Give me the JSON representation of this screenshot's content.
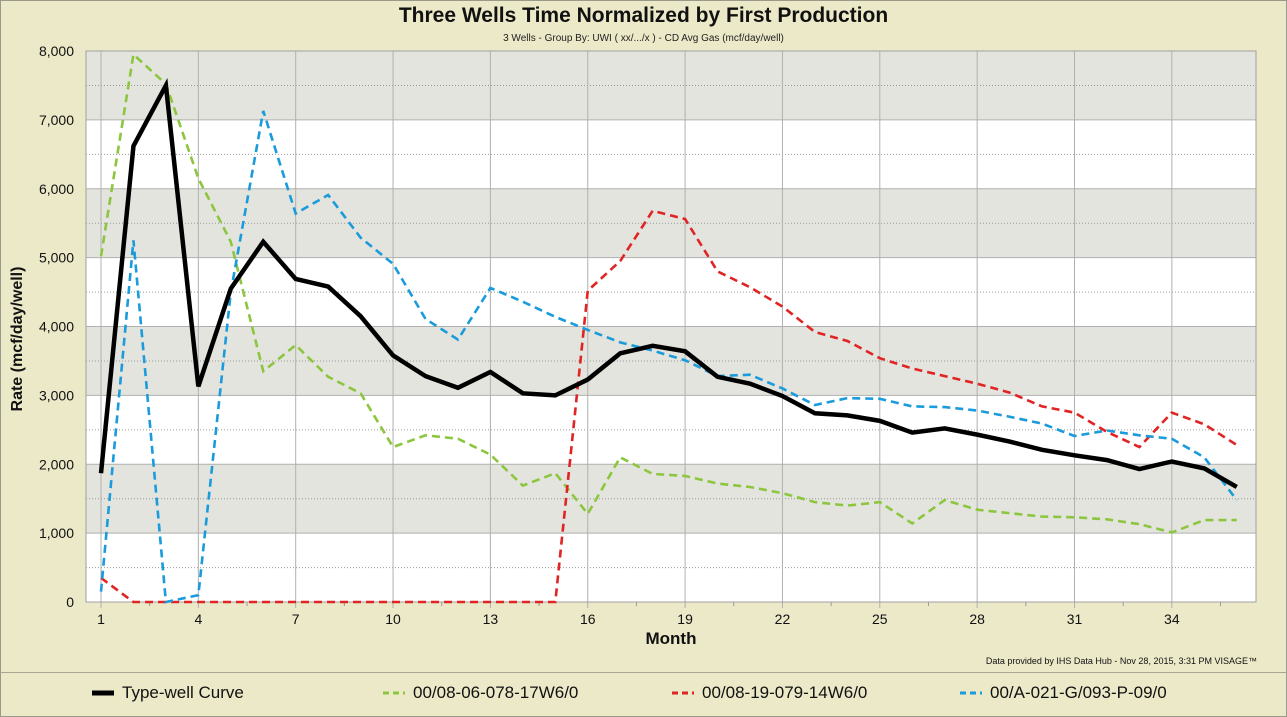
{
  "chart_data": {
    "type": "line",
    "title": "Three Wells Time Normalized by First Production",
    "subtitle": "3 Wells - Group By: UWI ( xx/.../x ) - CD Avg Gas (mcf/day/well)",
    "xlabel": "Month",
    "ylabel": "Rate (mcf/day/well)",
    "xlim": [
      1,
      36
    ],
    "ylim": [
      0,
      8000
    ],
    "x_ticks": [
      1,
      4,
      7,
      10,
      13,
      16,
      19,
      22,
      25,
      28,
      31,
      34
    ],
    "y_ticks": [
      0,
      1000,
      2000,
      3000,
      4000,
      5000,
      6000,
      7000,
      8000
    ],
    "y_tick_labels": [
      "0",
      "1,000",
      "2,000",
      "3,000",
      "4,000",
      "5,000",
      "6,000",
      "7,000",
      "8,000"
    ],
    "grid": true,
    "legend_position": "bottom",
    "x": [
      1,
      2,
      3,
      4,
      5,
      6,
      7,
      8,
      9,
      10,
      11,
      12,
      13,
      14,
      15,
      16,
      17,
      18,
      19,
      20,
      21,
      22,
      23,
      24,
      25,
      26,
      27,
      28,
      29,
      30,
      31,
      32,
      33,
      34,
      35,
      36
    ],
    "series": [
      {
        "name": "Type-well Curve",
        "color": "#000000",
        "style": "solid",
        "values": [
          1870,
          6620,
          7500,
          3130,
          4550,
          5230,
          4690,
          4580,
          4150,
          3580,
          3280,
          3110,
          3340,
          3030,
          3000,
          3230,
          3610,
          3720,
          3640,
          3270,
          3170,
          2990,
          2740,
          2710,
          2630,
          2460,
          2520,
          2430,
          2330,
          2210,
          2130,
          2060,
          1930,
          2040,
          1940,
          1670
        ]
      },
      {
        "name": "00/08-06-078-17W6/0",
        "color": "#8CC63F",
        "style": "dashed",
        "values": [
          5020,
          7950,
          7520,
          6150,
          5230,
          3350,
          3730,
          3270,
          3030,
          2250,
          2420,
          2370,
          2140,
          1690,
          1870,
          1280,
          2100,
          1860,
          1830,
          1720,
          1670,
          1580,
          1450,
          1400,
          1450,
          1140,
          1480,
          1340,
          1290,
          1240,
          1230,
          1200,
          1130,
          1010,
          1190,
          1190
        ]
      },
      {
        "name": "00/08-19-079-14W6/0",
        "color": "#E02424",
        "style": "dashed",
        "values": [
          350,
          0,
          0,
          0,
          0,
          0,
          0,
          0,
          0,
          0,
          0,
          0,
          0,
          0,
          0,
          4520,
          4950,
          5680,
          5560,
          4800,
          4570,
          4290,
          3920,
          3790,
          3540,
          3390,
          3280,
          3170,
          3040,
          2840,
          2750,
          2470,
          2250,
          2750,
          2580,
          2280
        ]
      },
      {
        "name": "00/A-021-G/093-P-09/0",
        "color": "#1A9BDB",
        "style": "dashed",
        "values": [
          150,
          5250,
          0,
          100,
          4500,
          7130,
          5640,
          5910,
          5290,
          4910,
          4110,
          3810,
          4560,
          4360,
          4140,
          3950,
          3770,
          3650,
          3510,
          3280,
          3300,
          3100,
          2860,
          2960,
          2950,
          2840,
          2830,
          2780,
          2690,
          2590,
          2410,
          2490,
          2420,
          2370,
          2100,
          1480
        ]
      }
    ],
    "credit": "Data provided by IHS Data Hub - Nov 28, 2015, 3:31 PM  VISAGE™",
    "band_color": "#E4E4DE",
    "background_color": "#ECE9C8"
  }
}
